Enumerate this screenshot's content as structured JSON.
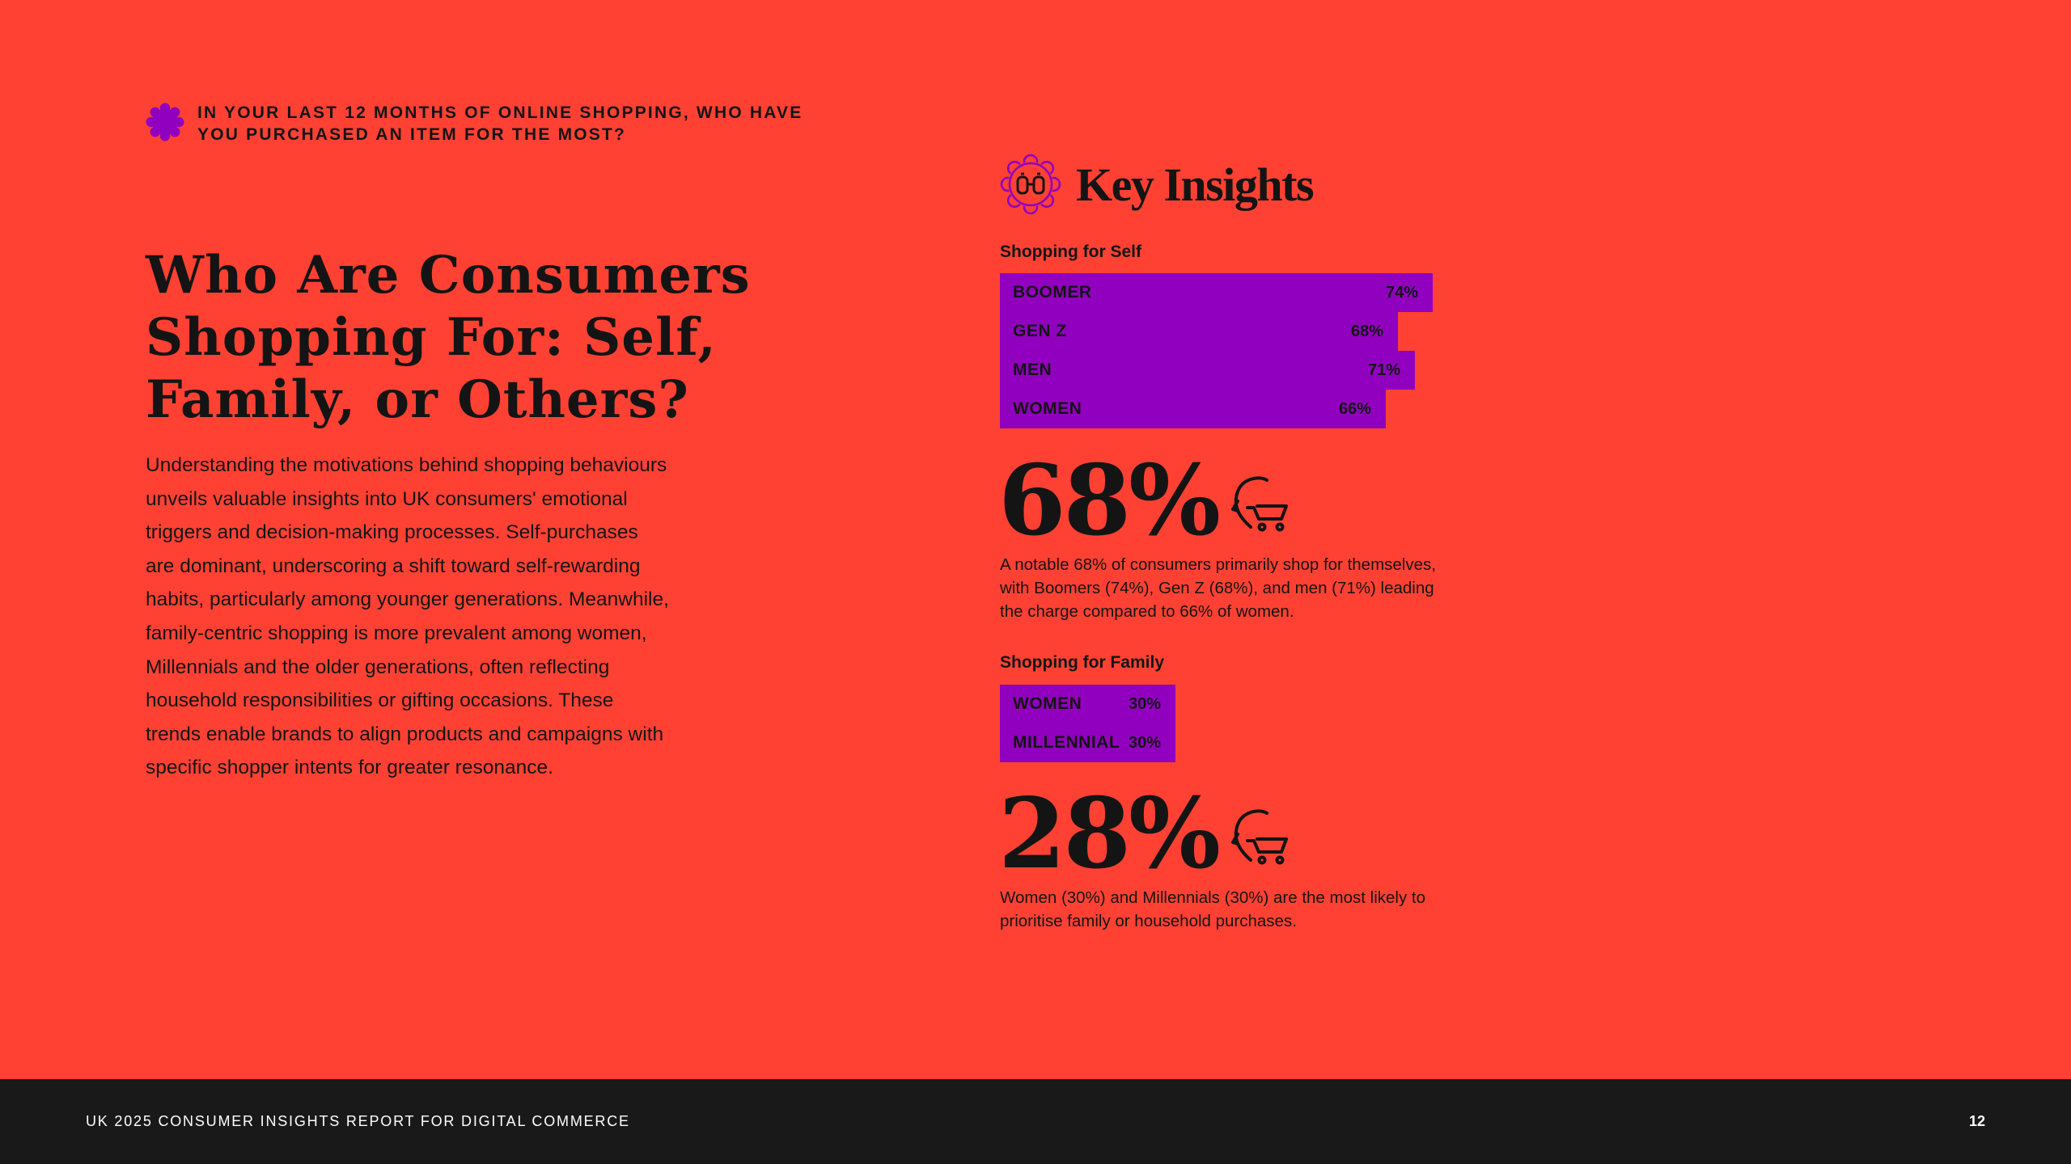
{
  "question": "IN YOUR LAST 12 MONTHS OF ONLINE SHOPPING, WHO HAVE YOU PURCHASED AN ITEM FOR THE MOST?",
  "title": "Who Are Consumers Shopping For: Self, Family, or Others?",
  "body": "Understanding the motivations behind shopping behaviours unveils valuable insights into UK consumers' emotional triggers and decision-making processes. Self-purchases are dominant, underscoring a shift toward self-rewarding habits, particularly among younger generations. Meanwhile, family-centric shopping is more prevalent among women, Millennials and the older generations, often reflecting household responsibilities or gifting occasions. These trends enable brands to align products and campaigns with specific shopper intents for greater resonance.",
  "insights_title": "Key Insights",
  "icons": {
    "question": "flower-badge-icon",
    "insights": "binoculars-badge-icon",
    "stat": "head-with-shopping-cart-icon"
  },
  "colors": {
    "background": "#ff4133",
    "bar": "#9100bf",
    "footer": "#191919"
  },
  "chart_data": [
    {
      "type": "bar",
      "title": "Shopping for Self",
      "categories": [
        "BOOMER",
        "GEN Z",
        "MEN",
        "WOMEN"
      ],
      "values": [
        74,
        68,
        71,
        66
      ],
      "value_labels": [
        "74%",
        "68%",
        "71%",
        "66%"
      ]
    },
    {
      "type": "bar",
      "title": "Shopping for Family",
      "categories": [
        "WOMEN",
        "MILLENNIAL"
      ],
      "values": [
        30,
        30
      ],
      "value_labels": [
        "30%",
        "30%"
      ]
    }
  ],
  "stats": [
    {
      "value": "68%",
      "description": "A notable 68% of consumers primarily shop for themselves, with Boomers (74%), Gen Z (68%), and men (71%) leading the charge compared to 66% of women."
    },
    {
      "value": "28%",
      "description": "Women (30%) and Millennials (30%) are the most likely to prioritise family or household purchases."
    }
  ],
  "footer": {
    "text": "UK 2025 CONSUMER INSIGHTS REPORT FOR DIGITAL COMMERCE",
    "page": "12"
  }
}
